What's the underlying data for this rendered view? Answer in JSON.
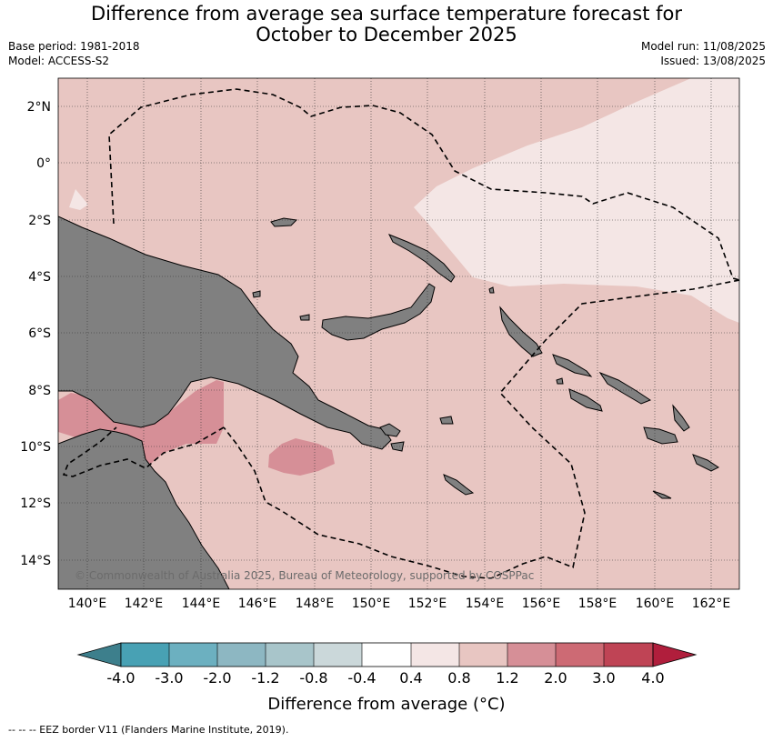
{
  "header": {
    "title_line1": "Difference from average sea surface temperature forecast for",
    "title_line2": "October to December 2025",
    "base_period": "Base period: 1981-2018",
    "model": "Model: ACCESS-S2",
    "model_run": "Model run: 11/08/2025",
    "issued": "Issued: 13/08/2025"
  },
  "map": {
    "lat_labels": [
      "2°N",
      "0°",
      "2°S",
      "4°S",
      "6°S",
      "8°S",
      "10°S",
      "12°S",
      "14°S"
    ],
    "lon_labels": [
      "140°E",
      "142°E",
      "144°E",
      "146°E",
      "148°E",
      "150°E",
      "152°E",
      "154°E",
      "156°E",
      "158°E",
      "160°E",
      "162°E"
    ],
    "copyright": "© Commonwealth of Australia 2025, Bureau of Meteorology, supported by COSPPac",
    "colors": {
      "land": "#808080",
      "anomaly_0_4_0_8": "#f4e6e5",
      "anomaly_0_8_1_2": "#e8c6c2",
      "anomaly_1_2_2_0": "#d68f97"
    }
  },
  "colorbar": {
    "labels": [
      "-4.0",
      "-3.0",
      "-2.0",
      "-1.2",
      "-0.8",
      "-0.4",
      "0.4",
      "0.8",
      "1.2",
      "2.0",
      "3.0",
      "4.0"
    ],
    "colors": [
      "#3d7f8c",
      "#48a1b4",
      "#6cb0c0",
      "#8db7c2",
      "#a8c5ca",
      "#cbd8da",
      "#ffffff",
      "#f4e6e5",
      "#e8c6c2",
      "#d68f97",
      "#cd6a74",
      "#bf4455",
      "#b01e3c"
    ],
    "title": "Difference from average (°C)"
  },
  "footer": {
    "legend_text": "--  --  -- EEZ border V11 (Flanders Marine Institute, 2019)."
  }
}
